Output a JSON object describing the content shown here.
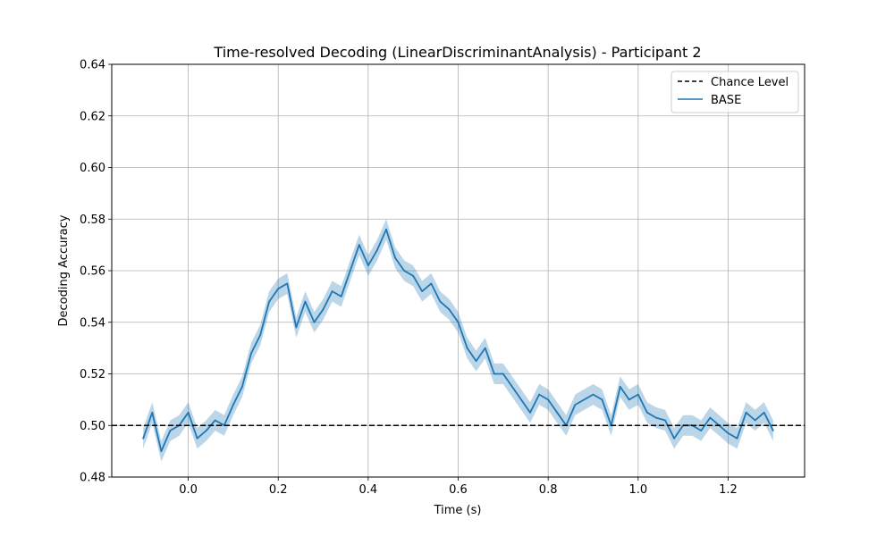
{
  "chart_data": {
    "type": "line",
    "title": "Time-resolved Decoding (LinearDiscriminantAnalysis) - Participant 2",
    "xlabel": "Time (s)",
    "ylabel": "Decoding Accuracy",
    "xlim": [
      -0.17,
      1.37
    ],
    "ylim": [
      0.48,
      0.64
    ],
    "x_ticks": [
      0.0,
      0.2,
      0.4,
      0.6,
      0.8,
      1.0,
      1.2
    ],
    "x_tick_labels": [
      "0.0",
      "0.2",
      "0.4",
      "0.6",
      "0.8",
      "1.0",
      "1.2"
    ],
    "y_ticks": [
      0.48,
      0.5,
      0.52,
      0.54,
      0.56,
      0.58,
      0.6,
      0.62,
      0.64
    ],
    "y_tick_labels": [
      "0.48",
      "0.50",
      "0.52",
      "0.54",
      "0.56",
      "0.58",
      "0.60",
      "0.62",
      "0.64"
    ],
    "grid": true,
    "legend_position": "top-right",
    "chance_level": {
      "name": "Chance Level",
      "value": 0.5,
      "color": "#000000",
      "style": "dashed"
    },
    "series": [
      {
        "name": "BASE",
        "color": "#1f77b4",
        "band_color": "#1f77b4",
        "band_halfwidth": 0.004,
        "x": [
          -0.1,
          -0.08,
          -0.06,
          -0.04,
          -0.02,
          0.0,
          0.02,
          0.04,
          0.06,
          0.08,
          0.1,
          0.12,
          0.14,
          0.16,
          0.18,
          0.2,
          0.22,
          0.24,
          0.26,
          0.28,
          0.3,
          0.32,
          0.34,
          0.36,
          0.38,
          0.4,
          0.42,
          0.44,
          0.46,
          0.48,
          0.5,
          0.52,
          0.54,
          0.56,
          0.58,
          0.6,
          0.62,
          0.64,
          0.66,
          0.68,
          0.7,
          0.72,
          0.74,
          0.76,
          0.78,
          0.8,
          0.82,
          0.84,
          0.86,
          0.88,
          0.9,
          0.92,
          0.94,
          0.96,
          0.98,
          1.0,
          1.02,
          1.04,
          1.06,
          1.08,
          1.1,
          1.12,
          1.14,
          1.16,
          1.18,
          1.2,
          1.22,
          1.24,
          1.26,
          1.28,
          1.3
        ],
        "values": [
          0.495,
          0.505,
          0.49,
          0.498,
          0.5,
          0.505,
          0.495,
          0.498,
          0.502,
          0.5,
          0.508,
          0.515,
          0.528,
          0.535,
          0.548,
          0.553,
          0.555,
          0.538,
          0.548,
          0.54,
          0.545,
          0.552,
          0.55,
          0.56,
          0.57,
          0.562,
          0.568,
          0.576,
          0.565,
          0.56,
          0.558,
          0.552,
          0.555,
          0.548,
          0.545,
          0.54,
          0.53,
          0.525,
          0.53,
          0.52,
          0.52,
          0.515,
          0.51,
          0.505,
          0.512,
          0.51,
          0.505,
          0.5,
          0.508,
          0.51,
          0.512,
          0.51,
          0.5,
          0.515,
          0.51,
          0.512,
          0.505,
          0.503,
          0.502,
          0.495,
          0.5,
          0.5,
          0.498,
          0.503,
          0.5,
          0.497,
          0.495,
          0.505,
          0.502,
          0.505,
          0.498
        ]
      }
    ]
  }
}
